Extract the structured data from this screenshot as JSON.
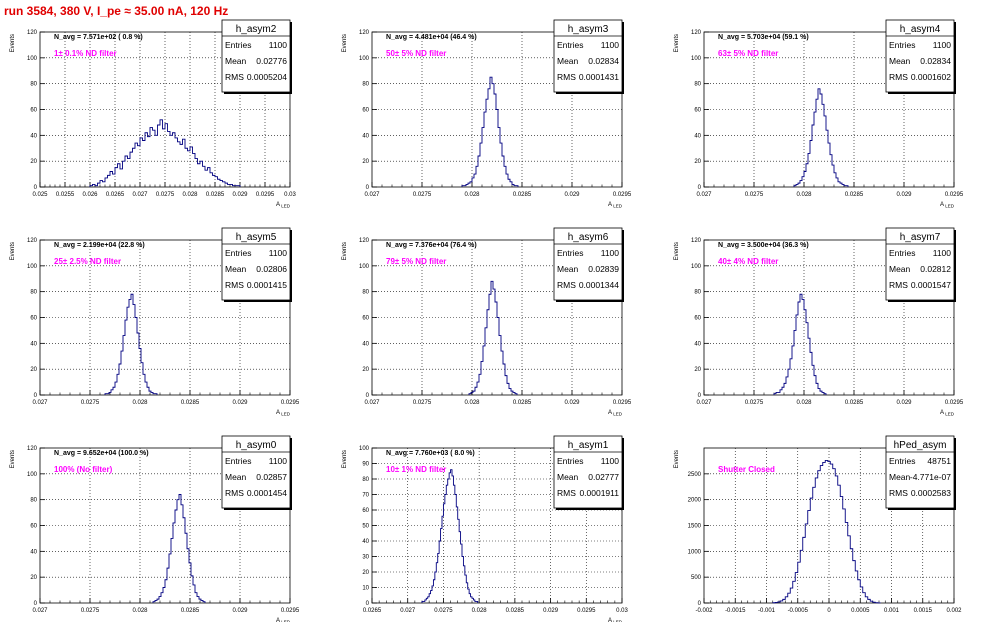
{
  "page_title": "run 3584,   380 V, I_pe ≈ 35.00 nA, 120 Hz",
  "chart_data": [
    {
      "type": "bar",
      "hist": "h_asym2",
      "title": "h_asym2",
      "ylabel": "Events",
      "xlabel": "A_LED",
      "navg": "N_avg = 7.571e+02 ( 0.8 %)",
      "note": "1± 0.1% ND filter",
      "stats": {
        "entries": "1100",
        "mean": "0.02776",
        "rms": "0.0005204"
      },
      "xlim": [
        0.025,
        0.03
      ],
      "ylim": [
        0,
        120
      ],
      "xticks": [
        0.025,
        0.0255,
        0.026,
        0.0265,
        0.027,
        0.0275,
        0.028,
        0.0285,
        0.029,
        0.0295,
        0.03
      ],
      "xticklabels": [
        "0.025",
        "0.0255",
        "0.026",
        "0.0265",
        "0.027",
        "0.0275",
        "0.028",
        "0.0285",
        "0.029",
        "0.0295",
        "0.03"
      ],
      "yticks": [
        0,
        20,
        40,
        60,
        80,
        100,
        120
      ],
      "yticklabels": [
        "0",
        "20",
        "40",
        "60",
        "80",
        "100",
        "120"
      ],
      "bin_start": 0.026,
      "bin_width": 5e-05,
      "values": [
        1,
        2,
        1,
        3,
        5,
        4,
        7,
        9,
        12,
        10,
        15,
        18,
        14,
        20,
        24,
        22,
        27,
        30,
        34,
        32,
        38,
        36,
        42,
        39,
        46,
        44,
        40,
        48,
        52,
        45,
        49,
        43,
        40,
        42,
        38,
        35,
        33,
        37,
        30,
        28,
        31,
        26,
        22,
        18,
        20,
        16,
        13,
        15,
        11,
        9,
        8,
        6,
        5,
        4,
        3,
        2,
        2,
        1,
        1,
        1
      ]
    },
    {
      "type": "bar",
      "hist": "h_asym3",
      "title": "h_asym3",
      "ylabel": "Events",
      "xlabel": "A_LED",
      "navg": "N_avg = 4.481e+04 (46.4 %)",
      "note": "50± 5% ND filter",
      "stats": {
        "entries": "1100",
        "mean": "0.02834",
        "rms": "0.0001431"
      },
      "xlim": [
        0.027,
        0.0295
      ],
      "ylim": [
        0,
        120
      ],
      "xticks": [
        0.027,
        0.0275,
        0.028,
        0.0285,
        0.029,
        0.0295
      ],
      "xticklabels": [
        "0.027",
        "0.0275",
        "0.028",
        "0.0285",
        "0.029",
        "0.0295"
      ],
      "yticks": [
        0,
        20,
        40,
        60,
        80,
        100,
        120
      ],
      "yticklabels": [
        "0",
        "20",
        "40",
        "60",
        "80",
        "100",
        "120"
      ],
      "bin_start": 0.0279,
      "bin_width": 2e-05,
      "values": [
        1,
        1,
        2,
        3,
        4,
        7,
        10,
        16,
        24,
        34,
        46,
        58,
        68,
        76,
        85,
        80,
        72,
        60,
        46,
        34,
        24,
        16,
        10,
        6,
        4,
        2,
        1,
        1
      ]
    },
    {
      "type": "bar",
      "hist": "h_asym4",
      "title": "h_asym4",
      "ylabel": "Events",
      "xlabel": "A_LED",
      "navg": "N_avg = 5.703e+04 (59.1 %)",
      "note": "63± 5% ND filter",
      "stats": {
        "entries": "1100",
        "mean": "0.02834",
        "rms": "0.0001602"
      },
      "xlim": [
        0.027,
        0.0295
      ],
      "ylim": [
        0,
        120
      ],
      "xticks": [
        0.027,
        0.0275,
        0.028,
        0.0285,
        0.029,
        0.0295
      ],
      "xticklabels": [
        "0.027",
        "0.0275",
        "0.028",
        "0.0285",
        "0.029",
        "0.0295"
      ],
      "yticks": [
        0,
        20,
        40,
        60,
        80,
        100,
        120
      ],
      "yticklabels": [
        "0",
        "20",
        "40",
        "60",
        "80",
        "100",
        "120"
      ],
      "bin_start": 0.0279,
      "bin_width": 2e-05,
      "values": [
        1,
        2,
        3,
        5,
        8,
        12,
        18,
        26,
        36,
        48,
        58,
        68,
        76,
        72,
        64,
        55,
        44,
        34,
        25,
        17,
        11,
        7,
        4,
        3,
        2,
        1,
        1
      ]
    },
    {
      "type": "bar",
      "hist": "h_asym5",
      "title": "h_asym5",
      "ylabel": "Events",
      "xlabel": "A_LED",
      "navg": "N_avg = 2.199e+04 (22.8 %)",
      "note": "25± 2.5% ND filter",
      "stats": {
        "entries": "1100",
        "mean": "0.02806",
        "rms": "0.0001415"
      },
      "xlim": [
        0.027,
        0.0295
      ],
      "ylim": [
        0,
        120
      ],
      "xticks": [
        0.027,
        0.0275,
        0.028,
        0.0285,
        0.029,
        0.0295
      ],
      "xticklabels": [
        "0.027",
        "0.0275",
        "0.028",
        "0.0285",
        "0.029",
        "0.0295"
      ],
      "yticks": [
        0,
        20,
        40,
        60,
        80,
        100,
        120
      ],
      "yticklabels": [
        "0",
        "20",
        "40",
        "60",
        "80",
        "100",
        "120"
      ],
      "bin_start": 0.02765,
      "bin_width": 2e-05,
      "values": [
        1,
        1,
        2,
        4,
        6,
        10,
        16,
        24,
        34,
        46,
        58,
        68,
        74,
        78,
        70,
        60,
        48,
        36,
        25,
        16,
        10,
        6,
        3,
        2,
        1,
        1
      ]
    },
    {
      "type": "bar",
      "hist": "h_asym6",
      "title": "h_asym6",
      "ylabel": "Events",
      "xlabel": "A_LED",
      "navg": "N_avg = 7.376e+04 (76.4 %)",
      "note": "79± 5% ND filter",
      "stats": {
        "entries": "1100",
        "mean": "0.02839",
        "rms": "0.0001344"
      },
      "xlim": [
        0.027,
        0.0295
      ],
      "ylim": [
        0,
        120
      ],
      "xticks": [
        0.027,
        0.0275,
        0.028,
        0.0285,
        0.029,
        0.0295
      ],
      "xticklabels": [
        "0.027",
        "0.0275",
        "0.028",
        "0.0285",
        "0.029",
        "0.0295"
      ],
      "yticks": [
        0,
        20,
        40,
        60,
        80,
        100,
        120
      ],
      "yticklabels": [
        "0",
        "20",
        "40",
        "60",
        "80",
        "100",
        "120"
      ],
      "bin_start": 0.02797,
      "bin_width": 2e-05,
      "values": [
        1,
        2,
        3,
        6,
        10,
        16,
        26,
        38,
        52,
        66,
        78,
        88,
        82,
        72,
        60,
        46,
        34,
        24,
        15,
        9,
        5,
        3,
        2,
        1
      ]
    },
    {
      "type": "bar",
      "hist": "h_asym7",
      "title": "h_asym7",
      "ylabel": "Events",
      "xlabel": "A_LED",
      "navg": "N_avg = 3.500e+04 (36.3 %)",
      "note": "40± 4% ND filter",
      "stats": {
        "entries": "1100",
        "mean": "0.02812",
        "rms": "0.0001547"
      },
      "xlim": [
        0.027,
        0.0295
      ],
      "ylim": [
        0,
        120
      ],
      "xticks": [
        0.027,
        0.0275,
        0.028,
        0.0285,
        0.029,
        0.0295
      ],
      "xticklabels": [
        "0.027",
        "0.0275",
        "0.028",
        "0.0285",
        "0.029",
        "0.0295"
      ],
      "yticks": [
        0,
        20,
        40,
        60,
        80,
        100,
        120
      ],
      "yticklabels": [
        "0",
        "20",
        "40",
        "60",
        "80",
        "100",
        "120"
      ],
      "bin_start": 0.0277,
      "bin_width": 2e-05,
      "values": [
        1,
        2,
        2,
        4,
        6,
        9,
        14,
        20,
        28,
        38,
        50,
        62,
        72,
        78,
        74,
        66,
        56,
        44,
        33,
        23,
        15,
        9,
        5,
        3,
        2,
        1
      ]
    },
    {
      "type": "bar",
      "hist": "h_asym0",
      "title": "h_asym0",
      "ylabel": "Events",
      "xlabel": "A_LED",
      "navg": "N_avg = 9.652e+04 (100.0 %)",
      "note": "100% (No filter)",
      "stats": {
        "entries": "1100",
        "mean": "0.02857",
        "rms": "0.0001454"
      },
      "xlim": [
        0.027,
        0.0295
      ],
      "ylim": [
        0,
        120
      ],
      "xticks": [
        0.027,
        0.0275,
        0.028,
        0.0285,
        0.029,
        0.0295
      ],
      "xticklabels": [
        "0.027",
        "0.0275",
        "0.028",
        "0.0285",
        "0.029",
        "0.0295"
      ],
      "yticks": [
        0,
        20,
        40,
        60,
        80,
        100,
        120
      ],
      "yticklabels": [
        "0",
        "20",
        "40",
        "60",
        "80",
        "100",
        "120"
      ],
      "bin_start": 0.02813,
      "bin_width": 2e-05,
      "values": [
        1,
        2,
        3,
        5,
        8,
        12,
        18,
        27,
        38,
        50,
        62,
        72,
        80,
        84,
        76,
        66,
        54,
        42,
        31,
        21,
        14,
        8,
        5,
        3,
        2,
        1
      ]
    },
    {
      "type": "bar",
      "hist": "h_asym1",
      "title": "h_asym1",
      "ylabel": "Events",
      "xlabel": "A_LED",
      "navg": "N_avg = 7.760e+03 ( 8.0 %)",
      "note": "10± 1% ND filter",
      "stats": {
        "entries": "1100",
        "mean": "0.02777",
        "rms": "0.0001911"
      },
      "xlim": [
        0.0265,
        0.03
      ],
      "ylim": [
        0,
        100
      ],
      "xticks": [
        0.0265,
        0.027,
        0.0275,
        0.028,
        0.0285,
        0.029,
        0.0295,
        0.03
      ],
      "xticklabels": [
        "0.0265",
        "0.027",
        "0.0275",
        "0.028",
        "0.0285",
        "0.029",
        "0.0295",
        "0.03"
      ],
      "yticks": [
        0,
        10,
        20,
        30,
        40,
        50,
        60,
        70,
        80,
        90,
        100
      ],
      "yticklabels": [
        "0",
        "10",
        "20",
        "30",
        "40",
        "50",
        "60",
        "70",
        "80",
        "90",
        "100"
      ],
      "bin_start": 0.0272,
      "bin_width": 2e-05,
      "values": [
        1,
        1,
        2,
        3,
        4,
        6,
        8,
        11,
        15,
        20,
        26,
        32,
        40,
        48,
        56,
        64,
        70,
        76,
        80,
        84,
        86,
        82,
        76,
        70,
        62,
        54,
        46,
        38,
        30,
        24,
        18,
        13,
        9,
        6,
        4,
        3,
        2,
        1,
        1
      ]
    },
    {
      "type": "bar",
      "hist": "hPed_asym",
      "title": "hPed_asym",
      "ylabel": "Events",
      "xlabel": "",
      "navg": "",
      "note": "Shutter Closed",
      "stats": {
        "entries": "48751",
        "mean": "-4.771e-07",
        "rms": "0.0002583"
      },
      "xlim": [
        -0.002,
        0.002
      ],
      "ylim": [
        0,
        3000
      ],
      "xticks": [
        -0.002,
        -0.0015,
        -0.001,
        -0.0005,
        0,
        0.0005,
        0.001,
        0.0015,
        0.002
      ],
      "xticklabels": [
        "-0.002",
        "-0.0015",
        "-0.001",
        "-0.0005",
        "0",
        "0.0005",
        "0.001",
        "0.0015",
        "0.002"
      ],
      "yticks": [
        0,
        500,
        1000,
        1500,
        2000,
        2500
      ],
      "yticklabels": [
        "0",
        "500",
        "1000",
        "1500",
        "2000",
        "2500"
      ],
      "bin_start": -0.0009,
      "bin_width": 4e-05,
      "values": [
        5,
        10,
        20,
        40,
        70,
        120,
        190,
        290,
        420,
        590,
        790,
        1020,
        1270,
        1530,
        1790,
        2030,
        2240,
        2420,
        2560,
        2660,
        2720,
        2760,
        2740,
        2690,
        2600,
        2460,
        2280,
        2060,
        1820,
        1560,
        1300,
        1050,
        820,
        620,
        450,
        310,
        200,
        120,
        70,
        35,
        15,
        6,
        2
      ]
    }
  ]
}
